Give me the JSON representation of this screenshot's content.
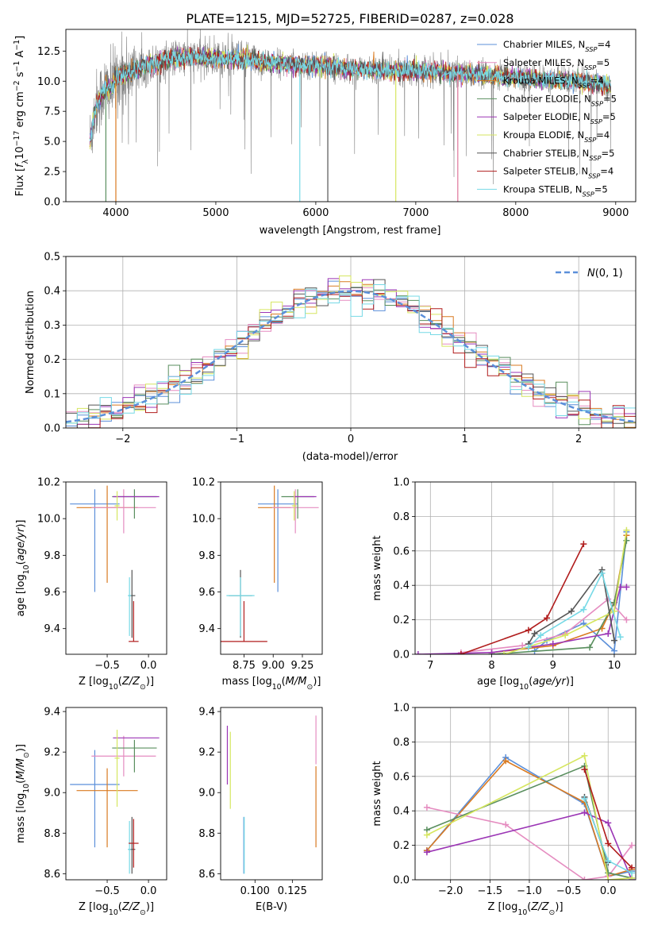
{
  "figure": {
    "title": "PLATE=1215, MJD=52725, FIBERID=0287, z=0.028"
  },
  "colors": {
    "palette": [
      "#5b8fd9",
      "#e58cc0",
      "#d97a21",
      "#5a8f5f",
      "#9b35b5",
      "#d6e660",
      "#555555",
      "#b11d1d",
      "#76d9e6"
    ],
    "data_gray": "#808080",
    "gaussian": "#5b8fd9",
    "grid": "#b0b0b0"
  },
  "models": [
    "Chabrier MILES, N_SSP=4",
    "Salpeter MILES, N_SSP=5",
    "Kroupa MILES, N_SSP=4",
    "Chabrier ELODIE, N_SSP=5",
    "Salpeter ELODIE, N_SSP=5",
    "Kroupa ELODIE, N_SSP=4",
    "Chabrier STELIB, N_SSP=5",
    "Salpeter STELIB, N_SSP=4",
    "Kroupa STELIB, N_SSP=5"
  ],
  "legend_models": [
    {
      "pre": "Chabrier MILES, N",
      "sub": "SSP",
      "post": "=4"
    },
    {
      "pre": "Salpeter MILES, N",
      "sub": "SSP",
      "post": "=5"
    },
    {
      "pre": "Kroupa MILES, N",
      "sub": "SSP",
      "post": "=4"
    },
    {
      "pre": "Chabrier ELODIE, N",
      "sub": "SSP",
      "post": "=5"
    },
    {
      "pre": "Salpeter ELODIE, N",
      "sub": "SSP",
      "post": "=5"
    },
    {
      "pre": "Kroupa ELODIE, N",
      "sub": "SSP",
      "post": "=4"
    },
    {
      "pre": "Chabrier STELIB, N",
      "sub": "SSP",
      "post": "=5"
    },
    {
      "pre": "Salpeter STELIB, N",
      "sub": "SSP",
      "post": "=4"
    },
    {
      "pre": "Kroupa STELIB, N",
      "sub": "SSP",
      "post": "=5"
    }
  ],
  "chart_data": [
    {
      "id": "spectrum",
      "type": "line",
      "xlabel": "wavelength [Angstrom, rest frame]",
      "ylabel": "Flux [f_λ 10^-17 erg cm^-2 s^-1 A^-1]",
      "xlim": [
        3500,
        9200
      ],
      "ylim": [
        0,
        14.3
      ],
      "xticks": [
        4000,
        5000,
        6000,
        7000,
        8000,
        9000
      ],
      "yticks": [
        0.0,
        2.5,
        5.0,
        7.5,
        10.0,
        12.5
      ],
      "grid": false,
      "legend": "upper right",
      "continuum": {
        "x": [
          3740,
          3800,
          3900,
          3950,
          4000,
          4100,
          4200,
          4300,
          4400,
          4500,
          4700,
          5000,
          5300,
          5600,
          6000,
          6400,
          6800,
          7000,
          7400,
          7800,
          8200,
          8600,
          8900
        ],
        "y": [
          5.0,
          8.0,
          9.5,
          9.3,
          10.3,
          10.6,
          10.9,
          11.3,
          11.4,
          11.8,
          12.0,
          11.9,
          11.8,
          11.5,
          11.3,
          11.0,
          10.9,
          10.9,
          10.7,
          10.4,
          10.2,
          10.0,
          9.7
        ]
      },
      "data_range": [
        3740,
        8950
      ],
      "model_drops": [
        {
          "model": 2,
          "x": 4000
        },
        {
          "model": 3,
          "x": 3900
        },
        {
          "model": 8,
          "x": 5840
        },
        {
          "model": 6,
          "x": 6120
        },
        {
          "model": 5,
          "x": 6800
        },
        {
          "model": 2,
          "x": 7420
        },
        {
          "model": 1,
          "x": 7420
        }
      ]
    },
    {
      "id": "residuals",
      "type": "histogram",
      "xlabel": "(data-model)/error",
      "ylabel": "Normed distribution",
      "xlim": [
        -2.5,
        2.5
      ],
      "ylim": [
        0,
        0.5
      ],
      "xticks": [
        -2,
        -1,
        0,
        1,
        2
      ],
      "yticks": [
        0.0,
        0.1,
        0.2,
        0.3,
        0.4,
        0.5
      ],
      "grid": true,
      "bin_width": 0.1,
      "bin_start": -2.5,
      "legend_label": "N(0,1)",
      "legend": "upper right"
    },
    {
      "id": "age-vs-Z",
      "type": "errorbar",
      "xlabel": "Z [log10(Z/Z_sun)]",
      "ylabel": "age [log10(age/yr)]",
      "xlim": [
        -1.0,
        0.22
      ],
      "ylim": [
        9.26,
        10.2
      ],
      "xticks": [
        -0.5,
        0.0
      ],
      "yticks": [
        9.4,
        9.6,
        9.8,
        10.0,
        10.2
      ],
      "grid": false,
      "points": [
        {
          "model": 0,
          "x": -0.65,
          "y": 10.08,
          "xerr": 0.3,
          "yerr": [
            0.48,
            0.08
          ]
        },
        {
          "model": 2,
          "x": -0.5,
          "y": 10.06,
          "xerr": 0.37,
          "yerr": [
            0.41,
            0.12
          ]
        },
        {
          "model": 1,
          "x": -0.3,
          "y": 10.06,
          "xerr": 0.39,
          "yerr": [
            0.14,
            0.1
          ]
        },
        {
          "model": 3,
          "x": -0.17,
          "y": 10.12,
          "xerr": 0.27,
          "yerr": [
            0.12,
            0.04
          ]
        },
        {
          "model": 4,
          "x": -0.15,
          "y": 10.12,
          "xerr": 0.28,
          "yerr": [
            0.0,
            0.0
          ]
        },
        {
          "model": 5,
          "x": -0.38,
          "y": 10.07,
          "xerr": 0.03,
          "yerr": [
            0.08,
            0.08
          ]
        },
        {
          "model": 6,
          "x": -0.2,
          "y": 9.58,
          "xerr": 0.04,
          "yerr": [
            0.23,
            0.14
          ]
        },
        {
          "model": 8,
          "x": -0.23,
          "y": 9.58,
          "xerr": 0.02,
          "yerr": [
            0.22,
            0.1
          ]
        },
        {
          "model": 7,
          "x": -0.18,
          "y": 9.33,
          "xerr": 0.06,
          "yerr": [
            0.0,
            0.22
          ]
        }
      ]
    },
    {
      "id": "age-vs-mass",
      "type": "errorbar",
      "xlabel": "mass [log10(M/M_sun)]",
      "ylabel": "",
      "xlim": [
        8.55,
        9.42
      ],
      "ylim": [
        9.26,
        10.2
      ],
      "xticks": [
        8.75,
        9.0,
        9.25
      ],
      "yticks": [
        9.4,
        9.6,
        9.8,
        10.0,
        10.2
      ],
      "grid": false,
      "points": [
        {
          "model": 0,
          "x": 9.04,
          "y": 10.08,
          "xerr": 0.17,
          "yerr": [
            0.48,
            0.08
          ]
        },
        {
          "model": 2,
          "x": 9.01,
          "y": 10.06,
          "xerr": 0.14,
          "yerr": [
            0.41,
            0.12
          ]
        },
        {
          "model": 1,
          "x": 9.19,
          "y": 10.06,
          "xerr": 0.2,
          "yerr": [
            0.14,
            0.1
          ]
        },
        {
          "model": 3,
          "x": 9.21,
          "y": 10.12,
          "xerr": 0.14,
          "yerr": [
            0.12,
            0.04
          ]
        },
        {
          "model": 4,
          "x": 9.27,
          "y": 10.12,
          "xerr": 0.1,
          "yerr": [
            0.0,
            0.0
          ]
        },
        {
          "model": 5,
          "x": 9.18,
          "y": 10.07,
          "xerr": 0.02,
          "yerr": [
            0.08,
            0.08
          ]
        },
        {
          "model": 6,
          "x": 8.72,
          "y": 9.58,
          "xerr": 0.1,
          "yerr": [
            0.23,
            0.14
          ]
        },
        {
          "model": 8,
          "x": 8.72,
          "y": 9.58,
          "xerr": 0.12,
          "yerr": [
            0.22,
            0.1
          ]
        },
        {
          "model": 7,
          "x": 8.75,
          "y": 9.33,
          "xerr": 0.2,
          "yerr": [
            0.0,
            0.22
          ]
        }
      ]
    },
    {
      "id": "mass-vs-Z",
      "type": "errorbar",
      "xlabel": "Z [log10(Z/Z_sun)]",
      "ylabel": "mass [log10(M/M_sun)]",
      "xlim": [
        -1.0,
        0.22
      ],
      "ylim": [
        8.57,
        9.42
      ],
      "xticks": [
        -0.5,
        0.0
      ],
      "yticks": [
        8.6,
        8.8,
        9.0,
        9.2,
        9.4
      ],
      "grid": false,
      "points": [
        {
          "model": 0,
          "x": -0.65,
          "y": 9.04,
          "xerr": 0.3,
          "yerr": [
            0.31,
            0.17
          ]
        },
        {
          "model": 2,
          "x": -0.5,
          "y": 9.01,
          "xerr": 0.37,
          "yerr": [
            0.28,
            0.11
          ]
        },
        {
          "model": 1,
          "x": -0.3,
          "y": 9.18,
          "xerr": 0.39,
          "yerr": [
            0.1,
            0.1
          ]
        },
        {
          "model": 3,
          "x": -0.17,
          "y": 9.22,
          "xerr": 0.27,
          "yerr": [
            0.12,
            0.04
          ]
        },
        {
          "model": 4,
          "x": -0.15,
          "y": 9.27,
          "xerr": 0.28,
          "yerr": [
            0.0,
            0.0
          ]
        },
        {
          "model": 5,
          "x": -0.38,
          "y": 9.17,
          "xerr": 0.03,
          "yerr": [
            0.24,
            0.14
          ]
        },
        {
          "model": 6,
          "x": -0.2,
          "y": 8.72,
          "xerr": 0.04,
          "yerr": [
            0.12,
            0.16
          ]
        },
        {
          "model": 8,
          "x": -0.23,
          "y": 8.72,
          "xerr": 0.02,
          "yerr": [
            0.12,
            0.14
          ]
        },
        {
          "model": 7,
          "x": -0.18,
          "y": 8.75,
          "xerr": 0.06,
          "yerr": [
            0.12,
            0.12
          ]
        }
      ]
    },
    {
      "id": "mass-vs-ebv",
      "type": "errorbar",
      "xlabel": "E(B-V)",
      "ylabel": "",
      "xlim": [
        0.077,
        0.145
      ],
      "ylim": [
        8.57,
        9.42
      ],
      "xticks": [
        0.1,
        0.125
      ],
      "yticks": [
        8.6,
        8.8,
        9.0,
        9.2,
        9.4
      ],
      "grid": false,
      "points": [
        {
          "model": 4,
          "x": 0.0815,
          "y": 9.18,
          "xerr": 0,
          "yerr": [
            0.14,
            0.15
          ]
        },
        {
          "model": 5,
          "x": 0.0835,
          "y": 9.2,
          "xerr": 0,
          "yerr": [
            0.28,
            0.1
          ]
        },
        {
          "model": 0,
          "x": 0.0925,
          "y": 8.72,
          "xerr": 0,
          "yerr": [
            0.12,
            0.16
          ]
        },
        {
          "model": 8,
          "x": 0.0928,
          "y": 8.72,
          "xerr": 0,
          "yerr": [
            0.12,
            0.16
          ]
        },
        {
          "model": 2,
          "x": 0.1408,
          "y": 8.9,
          "xerr": 0,
          "yerr": [
            0.17,
            0.23
          ]
        },
        {
          "model": 1,
          "x": 0.1408,
          "y": 9.2,
          "xerr": 0,
          "yerr": [
            0.06,
            0.18
          ]
        }
      ]
    },
    {
      "id": "weight-vs-age",
      "type": "line",
      "xlabel": "age [log10(age/yr)]",
      "ylabel": "mass weight",
      "xlim": [
        6.75,
        10.35
      ],
      "ylim": [
        0.0,
        1.0
      ],
      "xticks": [
        7,
        8,
        9,
        10
      ],
      "yticks": [
        0.0,
        0.2,
        0.4,
        0.6,
        0.8,
        1.0
      ],
      "grid": true,
      "series": [
        {
          "model": 0,
          "x": [
            8.7,
            8.9,
            9.5,
            10.0,
            10.2
          ],
          "y": [
            0.02,
            0.08,
            0.18,
            0.02,
            0.71
          ]
        },
        {
          "model": 1,
          "x": [
            7.5,
            8.5,
            9.2,
            9.9,
            10.2
          ],
          "y": [
            0.01,
            0.05,
            0.12,
            0.32,
            0.2
          ]
        },
        {
          "model": 2,
          "x": [
            8.0,
            9.0,
            9.8,
            10.0,
            10.2
          ],
          "y": [
            0.01,
            0.05,
            0.15,
            0.3,
            0.69
          ]
        },
        {
          "model": 3,
          "x": [
            8.0,
            9.6,
            10.0,
            10.2
          ],
          "y": [
            0.0,
            0.04,
            0.3,
            0.66
          ]
        },
        {
          "model": 4,
          "x": [
            6.8,
            8.0,
            9.0,
            9.9,
            10.1,
            10.2
          ],
          "y": [
            0.0,
            0.01,
            0.06,
            0.12,
            0.39,
            0.39
          ]
        },
        {
          "model": 5,
          "x": [
            8.2,
            9.2,
            10.0,
            10.2
          ],
          "y": [
            0.0,
            0.11,
            0.25,
            0.72
          ]
        },
        {
          "model": 6,
          "x": [
            8.6,
            8.7,
            9.3,
            9.8,
            10.0
          ],
          "y": [
            0.06,
            0.12,
            0.25,
            0.49,
            0.08
          ]
        },
        {
          "model": 7,
          "x": [
            7.5,
            8.6,
            8.9,
            9.5
          ],
          "y": [
            0.0,
            0.14,
            0.21,
            0.64
          ]
        },
        {
          "model": 8,
          "x": [
            8.6,
            8.8,
            9.5,
            9.8,
            10.1
          ],
          "y": [
            0.04,
            0.11,
            0.26,
            0.47,
            0.1
          ]
        }
      ]
    },
    {
      "id": "weight-vs-Z",
      "type": "line",
      "xlabel": "Z [log10(Z/Z_sun)]",
      "ylabel": "mass weight",
      "xlim": [
        -2.45,
        0.35
      ],
      "ylim": [
        0.0,
        1.0
      ],
      "xticks": [
        -2.0,
        -1.5,
        -1.0,
        -0.5,
        0.0
      ],
      "yticks": [
        0.0,
        0.2,
        0.4,
        0.6,
        0.8,
        1.0
      ],
      "grid": true,
      "series": [
        {
          "model": 0,
          "x": [
            -2.3,
            -1.3,
            -0.3,
            0.0,
            0.3
          ],
          "y": [
            0.17,
            0.71,
            0.44,
            0.02,
            0.05
          ]
        },
        {
          "model": 2,
          "x": [
            -2.3,
            -1.3,
            -0.3,
            0.0,
            0.3
          ],
          "y": [
            0.17,
            0.69,
            0.45,
            0.02,
            0.06
          ]
        },
        {
          "model": 1,
          "x": [
            -2.3,
            -1.3,
            -0.3,
            0.0,
            0.3
          ],
          "y": [
            0.42,
            0.32,
            0.0,
            0.02,
            0.2
          ]
        },
        {
          "model": 3,
          "x": [
            -2.3,
            -0.3,
            0.0,
            0.3
          ],
          "y": [
            0.29,
            0.66,
            0.04,
            0.01
          ]
        },
        {
          "model": 4,
          "x": [
            -2.3,
            -0.3,
            0.0,
            0.3
          ],
          "y": [
            0.16,
            0.39,
            0.33,
            0.0
          ]
        },
        {
          "model": 5,
          "x": [
            -2.3,
            -0.3,
            0.0,
            0.3
          ],
          "y": [
            0.26,
            0.72,
            0.0,
            0.01
          ]
        },
        {
          "model": 6,
          "x": [
            -0.3,
            0.0
          ],
          "y": [
            0.48,
            0.1
          ]
        },
        {
          "model": 7,
          "x": [
            -0.3,
            0.0,
            0.3
          ],
          "y": [
            0.64,
            0.21,
            0.07
          ]
        },
        {
          "model": 8,
          "x": [
            -0.3,
            0.0,
            0.3
          ],
          "y": [
            0.47,
            0.11,
            0.04
          ]
        }
      ]
    }
  ]
}
